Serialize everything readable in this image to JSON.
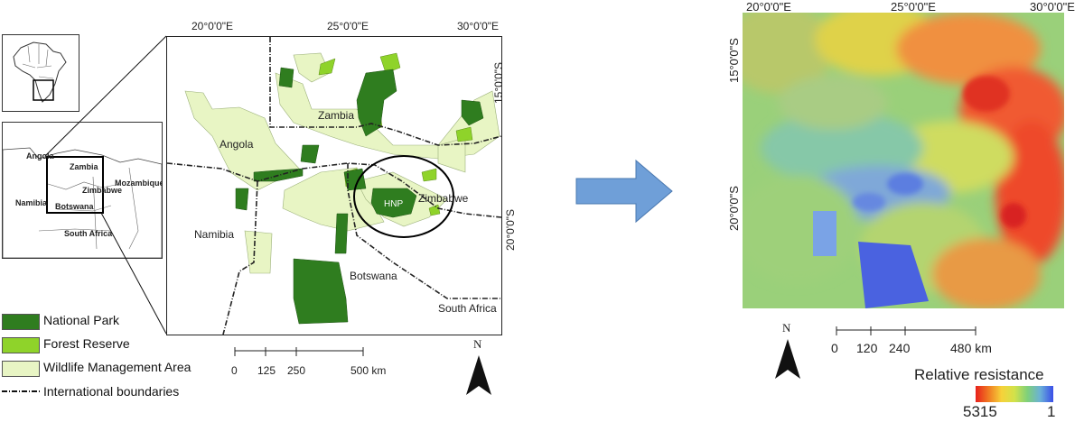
{
  "colors": {
    "national_park": "#2f7d1f",
    "forest_reserve": "#8fd32a",
    "wildlife_area": "#e8f5c4",
    "arrow": "#6f9fd8"
  },
  "left_map": {
    "top_coords": [
      "20°0'0\"E",
      "25°0'0\"E",
      "30°0'0\"E"
    ],
    "right_coords": [
      "15°0'0\"S",
      "20°0'0\"S"
    ],
    "labels": {
      "zambia": "Zambia",
      "angola": "Angola",
      "zimbabwe": "Zimbabwe",
      "namibia": "Namibia",
      "botswana": "Botswana",
      "south_africa": "South Africa",
      "hnp": "HNP"
    },
    "inset_labels": {
      "angola": "Angola",
      "zambia": "Zambia",
      "zimbabwe": "Zimbabwe",
      "mozambique": "Mozambique",
      "namibia": "Namibia",
      "botswana": "Botswana",
      "south_africa": "South Africa"
    },
    "north": "N",
    "scale_ticks": [
      "0",
      "125",
      "250",
      "500 km"
    ]
  },
  "legend": {
    "items": [
      {
        "label": "National Park",
        "icon": "dark-green-swatch"
      },
      {
        "label": "Forest Reserve",
        "icon": "light-green-swatch"
      },
      {
        "label": "Wildlife Management Area",
        "icon": "pale-green-swatch"
      },
      {
        "label": "International boundaries",
        "icon": "dash-dot-line"
      }
    ]
  },
  "right_map": {
    "top_coords": [
      "20°0'0\"E",
      "25°0'0\"E",
      "30°0'0\"E"
    ],
    "left_coords": [
      "15°0'0\"S",
      "20°0'0\"S"
    ],
    "north": "N",
    "scale_ticks": [
      "0",
      "120",
      "240",
      "480 km"
    ],
    "resistance_title": "Relative resistance",
    "resistance_max": "5315",
    "resistance_min": "1"
  }
}
